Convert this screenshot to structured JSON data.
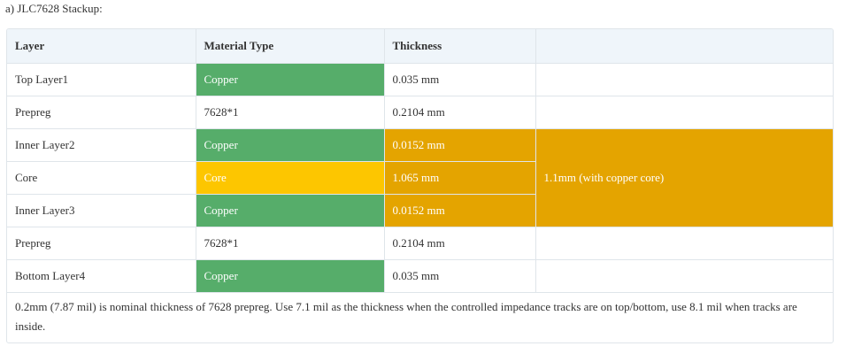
{
  "caption": "a) JLC7628 Stackup:",
  "colors": {
    "copper": "#56ad6a",
    "core": "#fdc600",
    "group_highlight": "#e4a400",
    "header_bg": "#eff5fa"
  },
  "table": {
    "headers": [
      "Layer",
      "Material Type",
      "Thickness",
      ""
    ],
    "rows": [
      {
        "layer": "Top Layer1",
        "material": "Copper",
        "thickness": "0.035 mm"
      },
      {
        "layer": "Prepreg",
        "material": "7628*1",
        "thickness": "0.2104 mm"
      },
      {
        "layer": "Inner Layer2",
        "material": "Copper",
        "thickness": "0.0152 mm"
      },
      {
        "layer": "Core",
        "material": "Core",
        "thickness": "1.065 mm"
      },
      {
        "layer": "Inner Layer3",
        "material": "Copper",
        "thickness": "0.0152 mm"
      },
      {
        "layer": "Prepreg",
        "material": "7628*1",
        "thickness": "0.2104 mm"
      },
      {
        "layer": "Bottom Layer4",
        "material": "Copper",
        "thickness": "0.035 mm"
      }
    ],
    "group_note": "1.1mm (with copper core)",
    "footnote": "0.2mm (7.87 mil) is nominal thickness of 7628 prepreg. Use 7.1 mil as the thickness when the controlled impedance tracks are on top/bottom, use 8.1 mil when tracks are inside."
  }
}
